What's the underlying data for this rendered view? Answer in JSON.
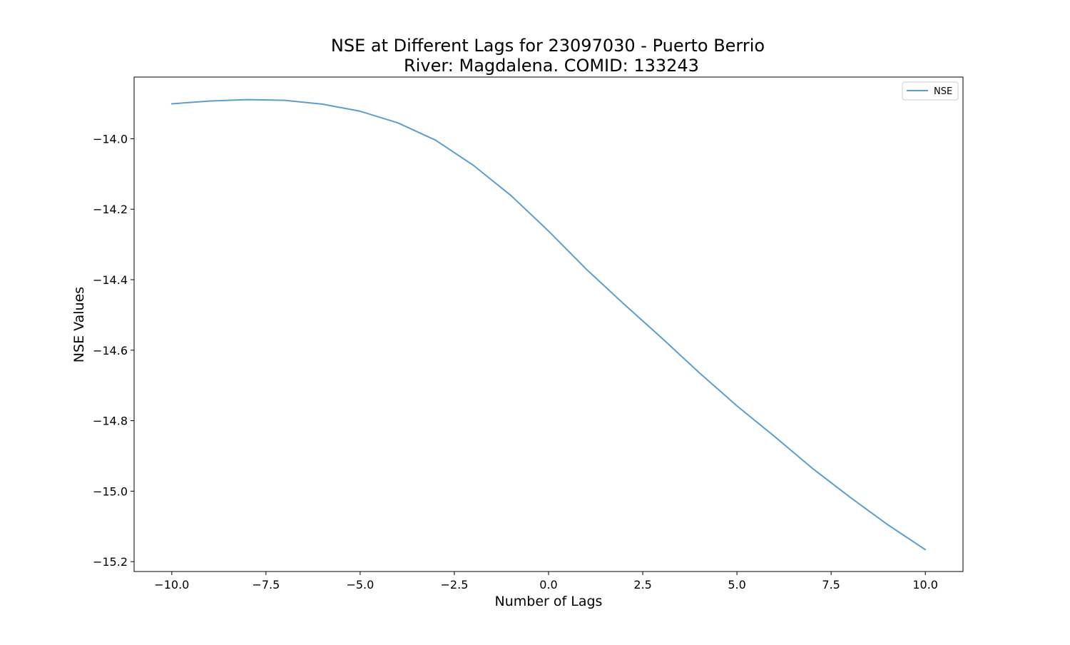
{
  "chart_data": {
    "type": "line",
    "title": "NSE at Different Lags for 23097030 - Puerto Berrio",
    "subtitle": "River: Magdalena. COMID: 133243",
    "xlabel": "Number of Lags",
    "ylabel": "NSE Values",
    "xlim": [
      -11,
      11
    ],
    "ylim": [
      -15.228,
      -13.825
    ],
    "xticks": [
      -10.0,
      -7.5,
      -5.0,
      -2.5,
      0.0,
      2.5,
      5.0,
      7.5,
      10.0
    ],
    "xtick_labels": [
      "−10.0",
      "−7.5",
      "−5.0",
      "−2.5",
      "0.0",
      "2.5",
      "5.0",
      "7.5",
      "10.0"
    ],
    "yticks": [
      -14.0,
      -14.2,
      -14.4,
      -14.6,
      -14.8,
      -15.0,
      -15.2
    ],
    "ytick_labels": [
      "−14.0",
      "−14.2",
      "−14.4",
      "−14.6",
      "−14.8",
      "−15.0",
      "−15.2"
    ],
    "grid": false,
    "legend_position": "top-right",
    "x": [
      -10,
      -9,
      -8,
      -7,
      -6,
      -5,
      -4,
      -3,
      -2,
      -1,
      0,
      1,
      2,
      3,
      4,
      5,
      6,
      7,
      8,
      9,
      10
    ],
    "series": [
      {
        "name": "NSE",
        "color": "#5a9fce",
        "values": [
          -13.901,
          -13.893,
          -13.889,
          -13.891,
          -13.902,
          -13.922,
          -13.955,
          -14.004,
          -14.075,
          -14.161,
          -14.262,
          -14.37,
          -14.469,
          -14.565,
          -14.664,
          -14.758,
          -14.845,
          -14.935,
          -15.017,
          -15.095,
          -15.166
        ]
      }
    ]
  }
}
